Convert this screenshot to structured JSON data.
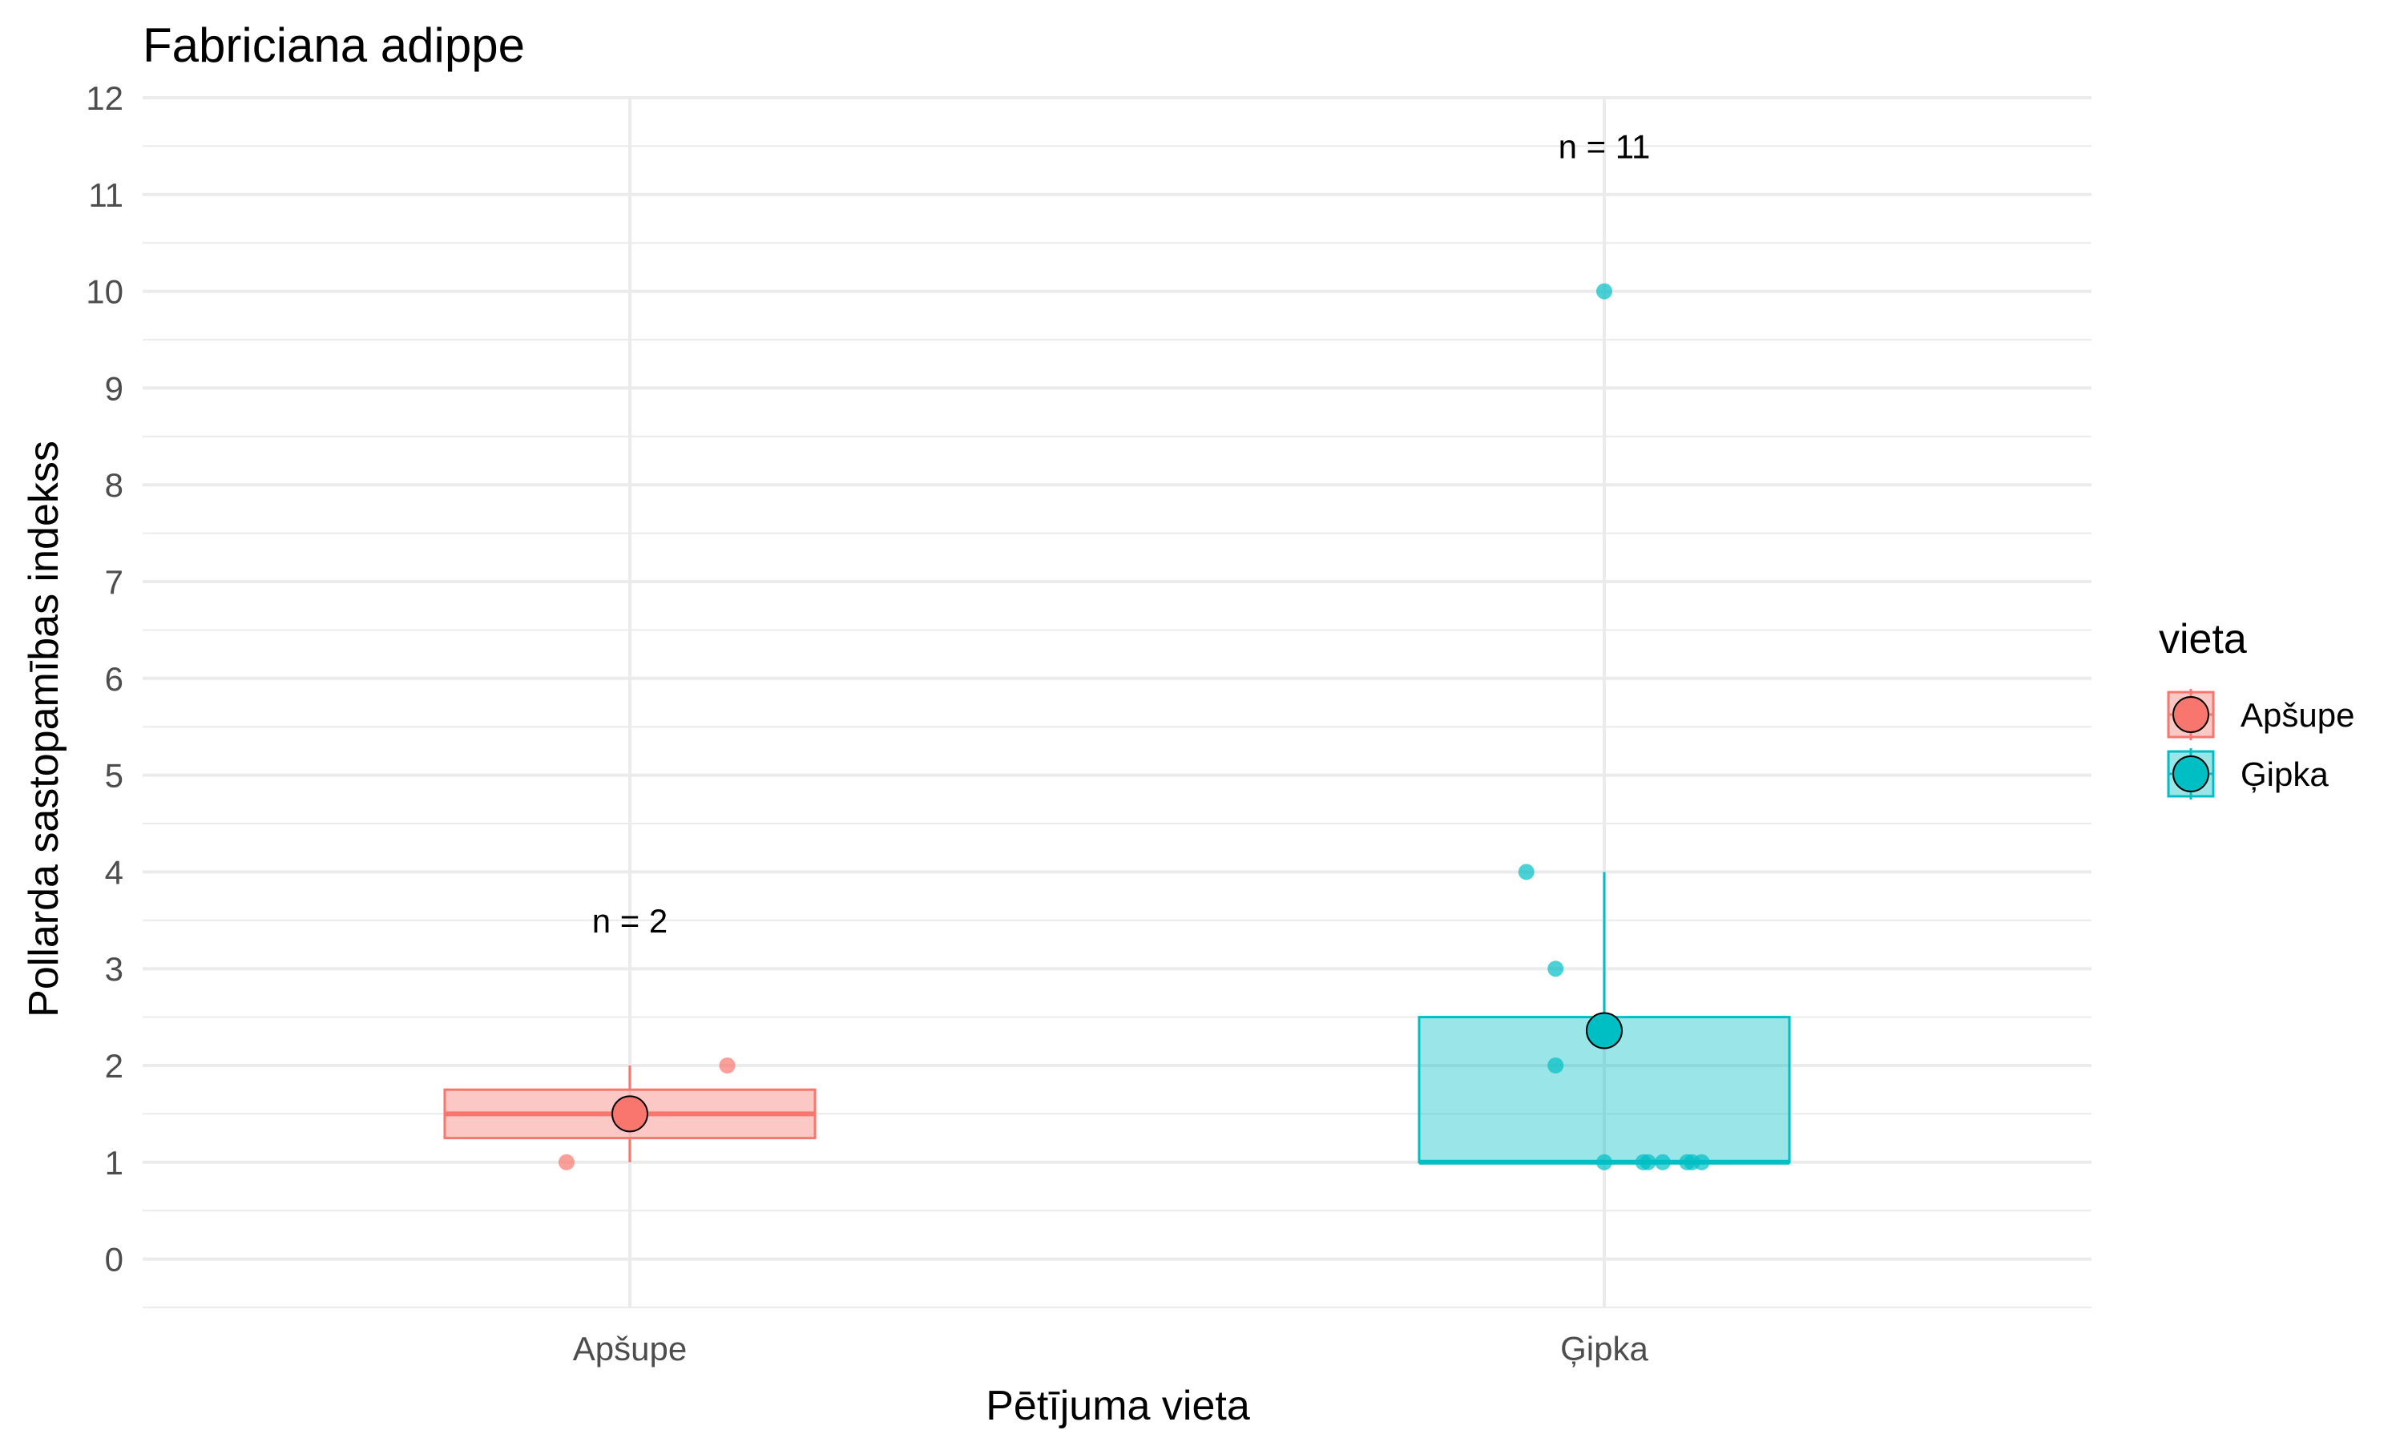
{
  "chart_data": {
    "type": "boxplot",
    "title": "Fabriciana adippe",
    "xlabel": "Pētījuma vieta",
    "ylabel": "Pollarda sastopamības indekss",
    "ylim": [
      -0.5,
      12
    ],
    "yticks": [
      0,
      1,
      2,
      3,
      4,
      5,
      6,
      7,
      8,
      9,
      10,
      11,
      12
    ],
    "categories": [
      "Apšupe",
      "Ģipka"
    ],
    "grid": true,
    "legend": {
      "title": "vieta",
      "position": "right",
      "entries": [
        "Apšupe",
        "Ģipka"
      ]
    },
    "series": [
      {
        "name": "Apšupe",
        "color": "#F8766D",
        "box": {
          "min": 1,
          "q1": 1.25,
          "median": 1.5,
          "q3": 1.75,
          "max": 2
        },
        "mean": 1.5,
        "points": [
          1,
          2
        ],
        "jitter": [
          -0.065,
          0.1
        ],
        "n_label": "n = 2",
        "n_label_y": 3.5
      },
      {
        "name": "Ģipka",
        "color": "#00BFC4",
        "box": {
          "min": 1,
          "q1": 1,
          "median": 1,
          "q3": 2.5,
          "max": 4
        },
        "mean": 2.36,
        "points": [
          10,
          4,
          3,
          2,
          1,
          1,
          1,
          1,
          1,
          1,
          1
        ],
        "jitter": [
          0,
          -0.08,
          -0.05,
          -0.05,
          0,
          0.04,
          0.045,
          0.06,
          0.085,
          0.09,
          0.1
        ],
        "n_label": "n = 11",
        "n_label_y": 11.5
      }
    ]
  }
}
